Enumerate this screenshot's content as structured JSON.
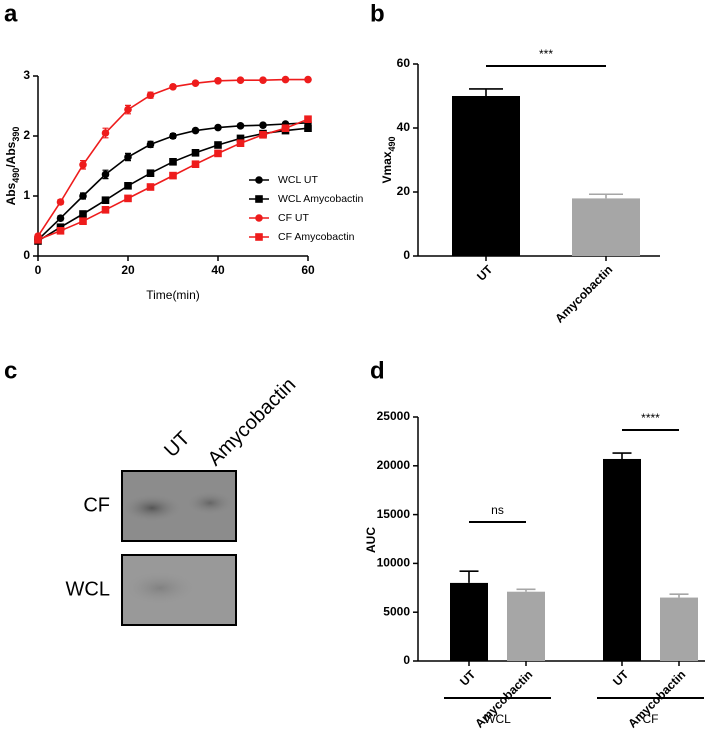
{
  "chart_data": [
    {
      "type": "line",
      "panel_label": "a",
      "x_label": "Time(min)",
      "y_label": [
        "Abs",
        "490",
        "/Abs",
        "390"
      ],
      "x": [
        0,
        5,
        10,
        15,
        20,
        25,
        30,
        35,
        40,
        45,
        50,
        55,
        60
      ],
      "xlim": [
        0,
        60
      ],
      "xticks": [
        0,
        20,
        40,
        60
      ],
      "ylim": [
        0,
        3
      ],
      "yticks": [
        0,
        1,
        2,
        3
      ],
      "series": [
        {
          "name": "WCL UT",
          "color": "#000000",
          "marker": "circle",
          "values": [
            0.27,
            0.63,
            1.0,
            1.36,
            1.65,
            1.86,
            2.0,
            2.09,
            2.14,
            2.17,
            2.18,
            2.2,
            2.22
          ],
          "errors": [
            0.03,
            0.04,
            0.05,
            0.07,
            0.06,
            0.05,
            0.04,
            0.03,
            0.03,
            0.03,
            0.03,
            0.03,
            0.03
          ]
        },
        {
          "name": "WCL Amycobactin",
          "color": "#000000",
          "marker": "square",
          "values": [
            0.25,
            0.48,
            0.7,
            0.93,
            1.17,
            1.38,
            1.57,
            1.72,
            1.85,
            1.96,
            2.04,
            2.09,
            2.13
          ],
          "errors": [
            0.03,
            0.03,
            0.04,
            0.04,
            0.04,
            0.04,
            0.04,
            0.04,
            0.04,
            0.04,
            0.04,
            0.04,
            0.04
          ]
        },
        {
          "name": "CF UT",
          "color": "#ee1c1c",
          "marker": "circle",
          "values": [
            0.33,
            0.9,
            1.52,
            2.05,
            2.44,
            2.68,
            2.82,
            2.88,
            2.92,
            2.93,
            2.93,
            2.94,
            2.94
          ],
          "errors": [
            0.03,
            0.04,
            0.07,
            0.08,
            0.07,
            0.05,
            0.03,
            0.02,
            0.02,
            0.02,
            0.02,
            0.02,
            0.02
          ]
        },
        {
          "name": "CF Amycobactin",
          "color": "#ee1c1c",
          "marker": "square",
          "values": [
            0.27,
            0.42,
            0.58,
            0.77,
            0.96,
            1.15,
            1.34,
            1.53,
            1.71,
            1.88,
            2.02,
            2.13,
            2.28
          ],
          "errors": [
            0.02,
            0.02,
            0.03,
            0.03,
            0.03,
            0.03,
            0.03,
            0.03,
            0.03,
            0.03,
            0.03,
            0.03,
            0.03
          ]
        }
      ]
    },
    {
      "type": "bar",
      "panel_label": "b",
      "y_label": [
        "Vmax",
        "490"
      ],
      "categories": [
        "UT",
        "Amycobactin"
      ],
      "values": [
        50,
        18
      ],
      "errors": [
        2.2,
        1.3
      ],
      "colors": [
        "#000000",
        "#a6a6a6"
      ],
      "ylim": [
        0,
        60
      ],
      "yticks": [
        0,
        20,
        40,
        60
      ],
      "annotations": [
        "***"
      ]
    },
    {
      "type": "bar",
      "panel_label": "d",
      "y_label": [
        "AUC"
      ],
      "categories": [
        "UT",
        "Amycobactin",
        "UT",
        "Amycobactin"
      ],
      "groups": [
        "WCL",
        "CF"
      ],
      "values": [
        8000,
        7100,
        20700,
        6500
      ],
      "errors": [
        1200,
        250,
        600,
        350
      ],
      "colors": [
        "#000000",
        "#a6a6a6",
        "#000000",
        "#a6a6a6"
      ],
      "ylim": [
        0,
        25000
      ],
      "yticks": [
        0,
        5000,
        10000,
        15000,
        20000,
        25000
      ],
      "annotations": [
        "ns",
        "****"
      ]
    }
  ],
  "blot": {
    "panel_label": "c",
    "columns": [
      "UT",
      "Amycobactin"
    ],
    "rows": [
      "CF",
      "WCL"
    ]
  }
}
